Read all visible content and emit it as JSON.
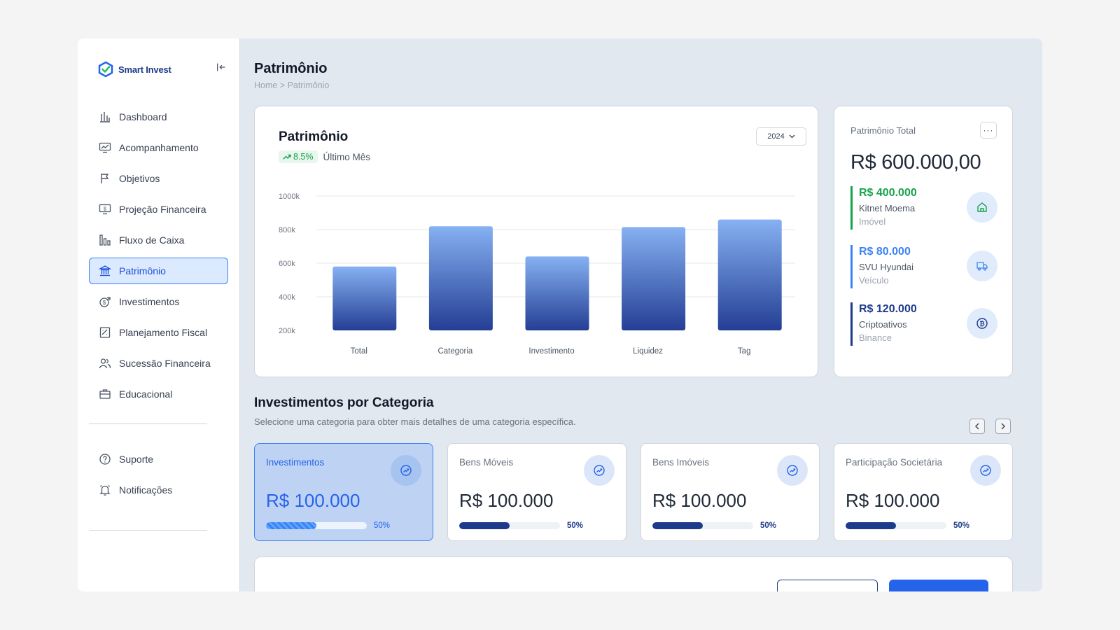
{
  "app": {
    "name_bold": "Smart",
    "name_rest": " Invest"
  },
  "sidebar": {
    "items": [
      {
        "label": "Dashboard",
        "icon": "bar-chart-icon"
      },
      {
        "label": "Acompanhamento",
        "icon": "monitor-chart-icon"
      },
      {
        "label": "Objetivos",
        "icon": "flag-icon"
      },
      {
        "label": "Projeção Financeira",
        "icon": "dollar-screen-icon"
      },
      {
        "label": "Fluxo de Caixa",
        "icon": "columns-icon"
      },
      {
        "label": "Patrimônio",
        "icon": "bank-icon",
        "active": true
      },
      {
        "label": "Investimentos",
        "icon": "coin-arrow-icon"
      },
      {
        "label": "Planejamento Fiscal",
        "icon": "tax-doc-icon"
      },
      {
        "label": "Sucessão Financeira",
        "icon": "users-icon"
      },
      {
        "label": "Educacional",
        "icon": "briefcase-icon"
      }
    ],
    "bottom_items": [
      {
        "label": "Suporte",
        "icon": "help-circle-icon"
      },
      {
        "label": "Notificações",
        "icon": "bell-icon"
      }
    ]
  },
  "header": {
    "title": "Patrimônio",
    "breadcrumb": "Home > Patrimônio"
  },
  "chart_card": {
    "title": "Patrimônio",
    "trend": "8.5%",
    "trend_label": "Último Mês",
    "year": "2024"
  },
  "chart_data": {
    "type": "bar",
    "categories": [
      "Total",
      "Categoria",
      "Investimento",
      "Liquidez",
      "Tag"
    ],
    "values": [
      580,
      820,
      640,
      815,
      860
    ],
    "ylim": [
      200,
      1000
    ],
    "yticks": [
      "1000k",
      "800k",
      "600k",
      "400k",
      "200k"
    ],
    "ytick_values": [
      1000,
      800,
      600,
      400,
      200
    ],
    "grid": true,
    "colors": {
      "top": "#86b1f2",
      "bottom": "#243e94"
    }
  },
  "total_card": {
    "label": "Patrimônio Total",
    "more": "···",
    "value": "R$ 600.000,00",
    "assets": [
      {
        "value": "R$ 400.000",
        "name": "Kitnet Moema",
        "category": "Imóvel",
        "color": "#16a34a",
        "icon": "home-icon"
      },
      {
        "value": "R$ 80.000",
        "name": "SVU Hyundai",
        "category": "Veículo",
        "color": "#3b82f6",
        "icon": "truck-icon"
      },
      {
        "value": "R$ 120.000",
        "name": "Criptoativos",
        "category": "Binance",
        "color": "#1e3a8a",
        "icon": "bitcoin-icon"
      }
    ]
  },
  "section": {
    "title": "Investimentos por Categoria",
    "subtitle": "Selecione uma categoria para obter mais detalhes de uma categoria específica."
  },
  "categories": [
    {
      "label": "Investimentos",
      "value": "R$ 100.000",
      "progress": 0.5,
      "pct": "50%",
      "active": true
    },
    {
      "label": "Bens Móveis",
      "value": "R$ 100.000",
      "progress": 0.5,
      "pct": "50%"
    },
    {
      "label": "Bens Imóveis",
      "value": "R$ 100.000",
      "progress": 0.5,
      "pct": "50%"
    },
    {
      "label": "Participação Societária",
      "value": "R$ 100.000",
      "progress": 0.5,
      "pct": "50%"
    }
  ]
}
